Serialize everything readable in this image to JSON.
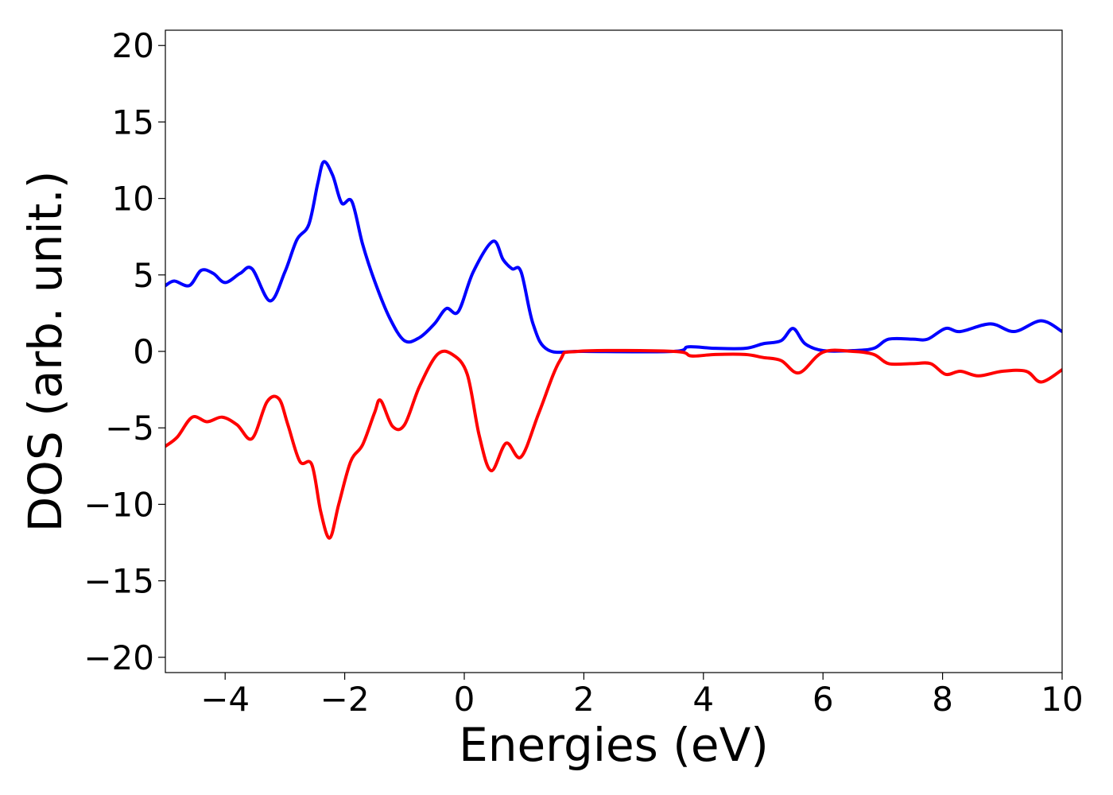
{
  "chart_data": {
    "type": "line",
    "xlabel": "Energies (eV)",
    "ylabel": "DOS (arb. unit.)",
    "xlim": [
      -5,
      10
    ],
    "ylim": [
      -21,
      21
    ],
    "x_ticks": [
      -4,
      -2,
      0,
      2,
      4,
      6,
      8,
      10
    ],
    "y_ticks": [
      -20,
      -15,
      -10,
      -5,
      0,
      5,
      10,
      15,
      20
    ],
    "x_tick_labels": [
      "−4",
      "−2",
      "0",
      "2",
      "4",
      "6",
      "8",
      "10"
    ],
    "y_tick_labels": [
      "−20",
      "−15",
      "−10",
      "−5",
      "0",
      "5",
      "10",
      "15",
      "20"
    ],
    "grid": false,
    "legend": "none",
    "series": [
      {
        "color": "#0000ff",
        "points": [
          [
            -5.0,
            4.3
          ],
          [
            -4.85,
            4.6
          ],
          [
            -4.6,
            4.3
          ],
          [
            -4.4,
            5.3
          ],
          [
            -4.2,
            5.1
          ],
          [
            -4.0,
            4.5
          ],
          [
            -3.75,
            5.1
          ],
          [
            -3.55,
            5.4
          ],
          [
            -3.25,
            3.3
          ],
          [
            -3.0,
            5.2
          ],
          [
            -2.8,
            7.3
          ],
          [
            -2.6,
            8.3
          ],
          [
            -2.45,
            11.0
          ],
          [
            -2.35,
            12.4
          ],
          [
            -2.2,
            11.5
          ],
          [
            -2.05,
            9.7
          ],
          [
            -1.88,
            9.8
          ],
          [
            -1.7,
            7.0
          ],
          [
            -1.5,
            4.6
          ],
          [
            -1.25,
            2.2
          ],
          [
            -1.0,
            0.7
          ],
          [
            -0.75,
            0.9
          ],
          [
            -0.5,
            1.8
          ],
          [
            -0.3,
            2.8
          ],
          [
            -0.1,
            2.6
          ],
          [
            0.15,
            5.2
          ],
          [
            0.48,
            7.2
          ],
          [
            0.65,
            6.0
          ],
          [
            0.8,
            5.4
          ],
          [
            0.95,
            5.2
          ],
          [
            1.15,
            1.8
          ],
          [
            1.4,
            0.1
          ],
          [
            2.0,
            0.0
          ],
          [
            3.5,
            0.0
          ],
          [
            3.75,
            0.3
          ],
          [
            4.2,
            0.2
          ],
          [
            4.7,
            0.2
          ],
          [
            5.0,
            0.5
          ],
          [
            5.3,
            0.7
          ],
          [
            5.5,
            1.5
          ],
          [
            5.7,
            0.5
          ],
          [
            6.0,
            0.05
          ],
          [
            6.5,
            0.05
          ],
          [
            6.85,
            0.2
          ],
          [
            7.1,
            0.8
          ],
          [
            7.5,
            0.8
          ],
          [
            7.75,
            0.8
          ],
          [
            8.05,
            1.5
          ],
          [
            8.3,
            1.3
          ],
          [
            8.8,
            1.8
          ],
          [
            9.2,
            1.3
          ],
          [
            9.65,
            2.0
          ],
          [
            10.0,
            1.3
          ]
        ]
      },
      {
        "color": "#ff0000",
        "points": [
          [
            -5.0,
            -6.2
          ],
          [
            -4.8,
            -5.6
          ],
          [
            -4.55,
            -4.3
          ],
          [
            -4.3,
            -4.6
          ],
          [
            -4.05,
            -4.3
          ],
          [
            -3.8,
            -4.8
          ],
          [
            -3.55,
            -5.7
          ],
          [
            -3.3,
            -3.3
          ],
          [
            -3.1,
            -3.1
          ],
          [
            -2.95,
            -4.8
          ],
          [
            -2.75,
            -7.2
          ],
          [
            -2.55,
            -7.4
          ],
          [
            -2.4,
            -10.5
          ],
          [
            -2.25,
            -12.2
          ],
          [
            -2.1,
            -10.0
          ],
          [
            -1.9,
            -7.2
          ],
          [
            -1.7,
            -6.1
          ],
          [
            -1.5,
            -4.0
          ],
          [
            -1.4,
            -3.2
          ],
          [
            -1.2,
            -4.9
          ],
          [
            -1.0,
            -4.8
          ],
          [
            -0.75,
            -2.3
          ],
          [
            -0.45,
            -0.2
          ],
          [
            -0.2,
            -0.2
          ],
          [
            0.05,
            -1.5
          ],
          [
            0.25,
            -5.5
          ],
          [
            0.45,
            -7.8
          ],
          [
            0.7,
            -6.0
          ],
          [
            0.95,
            -6.9
          ],
          [
            1.25,
            -4.0
          ],
          [
            1.6,
            -0.6
          ],
          [
            1.9,
            0.0
          ],
          [
            3.5,
            0.0
          ],
          [
            3.8,
            -0.3
          ],
          [
            4.2,
            -0.2
          ],
          [
            4.7,
            -0.2
          ],
          [
            5.0,
            -0.4
          ],
          [
            5.3,
            -0.6
          ],
          [
            5.6,
            -1.4
          ],
          [
            6.0,
            -0.05
          ],
          [
            6.5,
            0.0
          ],
          [
            6.85,
            -0.2
          ],
          [
            7.1,
            -0.8
          ],
          [
            7.5,
            -0.8
          ],
          [
            7.8,
            -0.8
          ],
          [
            8.05,
            -1.5
          ],
          [
            8.3,
            -1.3
          ],
          [
            8.6,
            -1.6
          ],
          [
            9.0,
            -1.3
          ],
          [
            9.4,
            -1.3
          ],
          [
            9.65,
            -2.0
          ],
          [
            10.0,
            -1.2
          ]
        ]
      }
    ]
  }
}
